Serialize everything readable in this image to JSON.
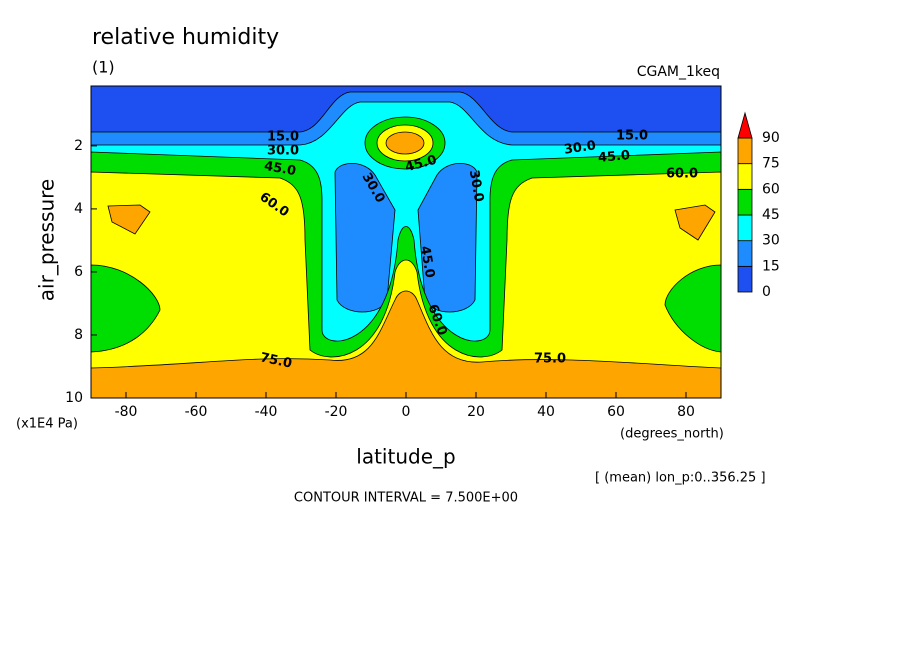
{
  "chart_data": {
    "type": "contour",
    "title": "relative humidity",
    "subtitle": "(1)",
    "dataset": "CGAM_1keq",
    "x_label": "latitude_p",
    "x_units": "(degrees_north)",
    "y_label": "air_pressure",
    "y_units": "(x1E4 Pa)",
    "note": "[ (mean) lon_p:0..356.25 ]",
    "contour_interval": "CONTOUR INTERVAL = 7.500E+00",
    "xlim": [
      -90,
      90
    ],
    "xticks": [
      -80,
      -60,
      -40,
      -20,
      0,
      20,
      40,
      60,
      80
    ],
    "ylim": [
      10,
      0.1
    ],
    "yticks": [
      2,
      4,
      6,
      8,
      10
    ],
    "levels": [
      0,
      15,
      30,
      45,
      60,
      75,
      90
    ],
    "colors": [
      "#1e4ff0",
      "#1e8cff",
      "#00ffff",
      "#00dd00",
      "#ffff00",
      "#ffa500",
      "#ff0000"
    ],
    "contour_labels": [
      {
        "value": 15,
        "label": "15.0"
      },
      {
        "value": 30,
        "label": "30.0"
      },
      {
        "value": 45,
        "label": "45.0"
      },
      {
        "value": 60,
        "label": "60.0"
      },
      {
        "value": 15,
        "label": "15.0"
      },
      {
        "value": 30,
        "label": "30.0"
      },
      {
        "value": 45,
        "label": "45.0"
      },
      {
        "value": 60,
        "label": "60.0"
      },
      {
        "value": 45,
        "label": "45.0"
      },
      {
        "value": 30,
        "label": "30.0"
      },
      {
        "value": 30,
        "label": "30.0"
      },
      {
        "value": 45,
        "label": "45.0"
      },
      {
        "value": 60,
        "label": "60.0"
      },
      {
        "value": 75,
        "label": "75.0"
      },
      {
        "value": 75,
        "label": "75.0"
      }
    ]
  }
}
